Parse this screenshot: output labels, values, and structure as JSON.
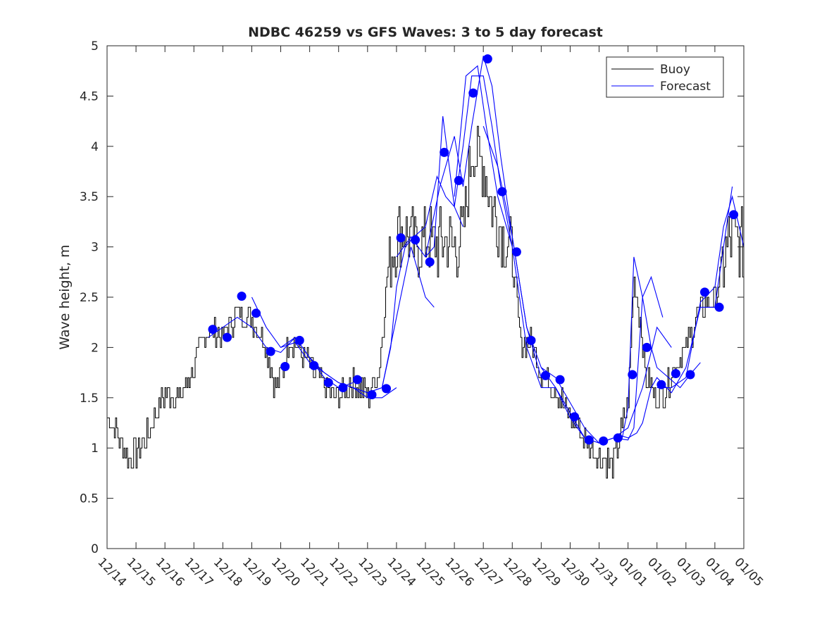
{
  "chart_data": {
    "type": "line",
    "title": "NDBC 46259 vs GFS Waves: 3 to 5 day forecast",
    "xlabel": "",
    "ylabel": "Wave height, m",
    "xlim": [
      0,
      22
    ],
    "ylim": [
      0,
      5
    ],
    "x_ticks": [
      0,
      1,
      2,
      3,
      4,
      5,
      6,
      7,
      8,
      9,
      10,
      11,
      12,
      13,
      14,
      15,
      16,
      17,
      18,
      19,
      20,
      21,
      22
    ],
    "x_tick_labels": [
      "12/14",
      "12/15",
      "12/16",
      "12/17",
      "12/18",
      "12/19",
      "12/20",
      "12/21",
      "12/22",
      "12/23",
      "12/24",
      "12/25",
      "12/26",
      "12/27",
      "12/28",
      "12/29",
      "12/30",
      "12/31",
      "01/01",
      "01/02",
      "01/03",
      "01/04",
      "01/05"
    ],
    "y_ticks": [
      0,
      0.5,
      1,
      1.5,
      2,
      2.5,
      3,
      3.5,
      4,
      4.5,
      5
    ],
    "y_tick_labels": [
      "0",
      "0.5",
      "1",
      "1.5",
      "2",
      "2.5",
      "3",
      "3.5",
      "4",
      "4.5",
      "5"
    ],
    "legend": {
      "position": "top-right",
      "entries": [
        "Buoy",
        "Forecast"
      ]
    },
    "colors": {
      "buoy": "#000000",
      "forecast": "#0000ff",
      "axes": "#262626"
    },
    "buoy_trend": {
      "x": [
        0,
        0.5,
        0.75,
        1,
        1.5,
        2,
        2.5,
        3,
        3.5,
        4,
        4.5,
        5,
        5.5,
        5.8,
        6,
        6.3,
        6.6,
        7,
        7.5,
        8,
        8.5,
        9,
        9.4,
        9.7,
        10,
        10.3,
        10.6,
        11,
        11.4,
        11.7,
        12,
        12.3,
        12.6,
        13,
        13.3,
        13.6,
        14,
        14.3,
        14.6,
        15,
        15.5,
        16,
        16.5,
        17,
        17.5,
        17.8,
        18,
        18.2,
        18.4,
        18.6,
        18.8,
        19,
        19.3,
        19.6,
        20,
        20.5,
        21,
        21.5,
        22
      ],
      "y": [
        1.3,
        1.05,
        0.9,
        0.95,
        1.2,
        1.55,
        1.5,
        1.8,
        2.2,
        2.1,
        2.35,
        2.3,
        2.0,
        1.6,
        1.7,
        2.1,
        2.0,
        1.8,
        1.6,
        1.5,
        1.7,
        1.5,
        1.8,
        2.8,
        3.1,
        3.2,
        3.0,
        3.1,
        3.0,
        3.1,
        3.0,
        3.1,
        4.0,
        3.8,
        3.4,
        3.2,
        2.9,
        2.0,
        2.1,
        1.75,
        1.6,
        1.3,
        1.1,
        0.9,
        0.85,
        1.2,
        1.5,
        2.7,
        2.3,
        1.7,
        1.6,
        1.5,
        1.6,
        1.8,
        2.0,
        2.4,
        2.5,
        3.1,
        3.0
      ]
    },
    "forecast_points": {
      "x": [
        3.65,
        4.15,
        4.65,
        5.15,
        5.65,
        6.15,
        6.65,
        7.15,
        7.65,
        8.15,
        8.65,
        9.15,
        9.65,
        10.15,
        10.65,
        11.15,
        11.65,
        12.15,
        12.65,
        13.15,
        13.65,
        14.15,
        14.65,
        15.15,
        15.65,
        16.15,
        16.65,
        17.15,
        17.65,
        18.15,
        18.65,
        19.15,
        19.65,
        20.15,
        20.65,
        21.15,
        21.65
      ],
      "y": [
        2.18,
        2.1,
        2.51,
        2.34,
        1.96,
        1.81,
        2.07,
        1.82,
        1.65,
        1.6,
        1.68,
        1.53,
        1.59,
        3.09,
        3.07,
        2.85,
        3.94,
        3.66,
        4.53,
        4.87,
        3.55,
        2.95,
        2.07,
        1.72,
        1.68,
        1.31,
        1.08,
        1.07,
        1.1,
        1.73,
        2.0,
        1.63,
        1.74,
        1.73,
        2.55,
        2.4,
        3.32
      ]
    },
    "forecast_runs": [
      {
        "x": [
          3.5,
          4,
          4.5,
          5,
          5.5,
          6,
          6.5,
          7,
          7.5,
          8,
          8.5
        ],
        "y": [
          2.1,
          2.2,
          2.3,
          2.2,
          2.0,
          1.95,
          2.1,
          1.9,
          1.7,
          1.6,
          1.65
        ]
      },
      {
        "x": [
          5,
          5.5,
          6,
          6.5,
          7,
          7.5,
          8,
          8.5,
          9,
          9.5,
          10
        ],
        "y": [
          2.5,
          2.2,
          2.0,
          2.05,
          1.85,
          1.75,
          1.65,
          1.6,
          1.5,
          1.5,
          1.6
        ]
      },
      {
        "x": [
          6,
          6.5,
          7,
          7.5,
          8,
          8.5,
          9,
          9.5,
          10,
          10.5,
          11,
          11.3
        ],
        "y": [
          2.0,
          2.1,
          1.9,
          1.75,
          1.65,
          1.6,
          1.55,
          1.6,
          2.3,
          3.0,
          2.5,
          2.4
        ]
      },
      {
        "x": [
          8.5,
          9,
          9.5,
          9.8,
          10,
          10.3,
          10.6,
          11,
          11.4,
          11.7,
          12,
          12.3
        ],
        "y": [
          1.6,
          1.55,
          1.6,
          2.0,
          2.6,
          3.0,
          3.1,
          3.2,
          3.7,
          3.5,
          3.4,
          3.2
        ]
      },
      {
        "x": [
          10,
          10.5,
          11,
          11.3,
          11.6,
          12,
          12.3,
          12.6,
          13,
          13.3,
          13.6,
          14
        ],
        "y": [
          2.9,
          3.1,
          2.9,
          3.0,
          4.3,
          3.4,
          4.0,
          4.7,
          4.7,
          4.2,
          3.6,
          3.0
        ]
      },
      {
        "x": [
          11,
          11.5,
          12,
          12.3,
          12.6,
          13,
          13.3,
          13.6,
          14,
          14.5,
          15
        ],
        "y": [
          2.9,
          3.6,
          4.1,
          3.6,
          4.2,
          4.9,
          4.6,
          3.9,
          3.1,
          2.2,
          1.7
        ]
      },
      {
        "x": [
          12,
          12.4,
          12.8,
          13.1,
          13.5,
          14,
          14.5,
          15,
          15.5,
          16,
          16.5
        ],
        "y": [
          3.5,
          4.7,
          4.8,
          4.2,
          3.5,
          3.0,
          2.0,
          1.6,
          1.6,
          1.3,
          1.1
        ]
      },
      {
        "x": [
          13,
          13.5,
          14,
          14.5,
          15,
          15.5,
          16,
          16.5,
          17,
          17.5,
          18,
          18.5,
          19,
          19.5
        ],
        "y": [
          4.2,
          3.8,
          3.1,
          2.2,
          1.8,
          1.7,
          1.45,
          1.2,
          1.05,
          1.1,
          1.2,
          1.6,
          2.2,
          2.0
        ]
      },
      {
        "x": [
          15,
          15.5,
          16,
          16.5,
          17,
          17.5,
          17.8,
          18,
          18.2,
          18.5,
          18.8,
          19.2
        ],
        "y": [
          1.8,
          1.6,
          1.35,
          1.1,
          1.05,
          1.1,
          1.1,
          1.4,
          2.9,
          2.5,
          2.7,
          2.3
        ]
      },
      {
        "x": [
          16.5,
          17,
          17.5,
          18,
          18.2,
          18.5,
          18.8,
          19,
          19.4,
          19.8,
          20.2,
          20.5
        ],
        "y": [
          1.1,
          1.05,
          1.1,
          1.08,
          1.2,
          2.5,
          2.0,
          1.8,
          1.7,
          1.6,
          1.75,
          1.85
        ]
      },
      {
        "x": [
          17.5,
          17.8,
          18,
          18.3,
          18.5,
          18.8,
          19,
          19.5,
          20,
          20.5,
          21,
          21.3,
          21.6
        ],
        "y": [
          1.1,
          1.12,
          1.1,
          1.15,
          1.25,
          1.6,
          1.7,
          1.55,
          1.8,
          2.4,
          2.4,
          3.0,
          3.6
        ]
      },
      {
        "x": [
          19,
          19.5,
          20,
          20.5,
          21,
          21.3,
          21.6,
          22
        ],
        "y": [
          1.6,
          1.6,
          1.7,
          2.45,
          2.6,
          3.2,
          3.5,
          3.0
        ]
      }
    ]
  }
}
